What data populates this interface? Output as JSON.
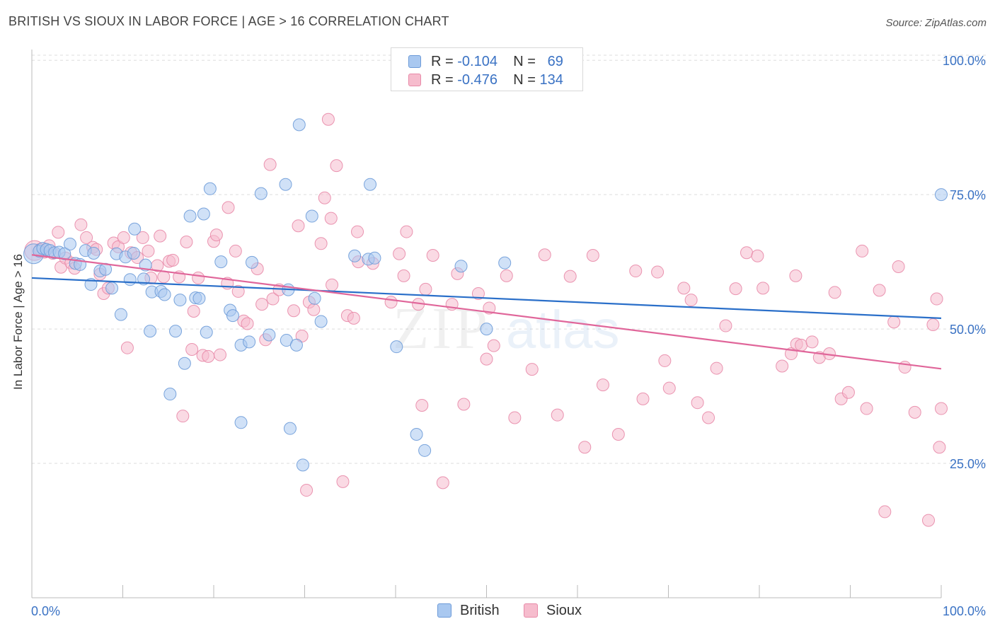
{
  "header": {
    "title": "BRITISH VS SIOUX IN LABOR FORCE | AGE > 16 CORRELATION CHART",
    "source": "Source: ZipAtlas.com"
  },
  "legend": {
    "british": {
      "r_label": "R = ",
      "r_value": "-0.104",
      "n_label": "N = ",
      "n_value": "69"
    },
    "sioux": {
      "r_label": "R = ",
      "r_value": "-0.476",
      "n_label": "N = ",
      "n_value": "134"
    }
  },
  "bottom_legend": {
    "british": "British",
    "sioux": "Sioux"
  },
  "watermark": {
    "zip": "ZIP",
    "atlas": "atlas"
  },
  "colors": {
    "british_fill": "#a9c8f0",
    "british_stroke": "#6d9bd8",
    "british_line": "#2a6fc9",
    "sioux_fill": "#f6bccd",
    "sioux_stroke": "#e88aa8",
    "sioux_line": "#e0669a",
    "tick_label": "#3a72c4",
    "grid": "#dddddd"
  },
  "chart_data": {
    "type": "scatter",
    "title": "BRITISH VS SIOUX IN LABOR FORCE | AGE > 16 CORRELATION CHART",
    "ylabel": "In Labor Force | Age > 16",
    "xlabel": "",
    "xlim": [
      0,
      100
    ],
    "ylim": [
      0,
      102
    ],
    "x_tick_labels": [
      "0.0%",
      "100.0%"
    ],
    "y_ticks": [
      25,
      50,
      75,
      100
    ],
    "y_tick_labels": [
      "25.0%",
      "50.0%",
      "75.0%",
      "100.0%"
    ],
    "grid": true,
    "legend_position": "top-center",
    "series": [
      {
        "name": "British",
        "color": "#6d9bd8",
        "r": -0.104,
        "n": 69,
        "trend": {
          "x": [
            0,
            100
          ],
          "y": [
            59.5,
            52.0
          ]
        },
        "points": [
          [
            0.2,
            64.0,
            3
          ],
          [
            0.8,
            64.5,
            1
          ],
          [
            1.2,
            65,
            1
          ],
          [
            1.6,
            64.8,
            1
          ],
          [
            2.0,
            64.6,
            1
          ],
          [
            2.5,
            64.2,
            1
          ],
          [
            3.0,
            64.3,
            1
          ],
          [
            3.6,
            64,
            1
          ],
          [
            4.2,
            65.8,
            1
          ],
          [
            4.8,
            62.2,
            1
          ],
          [
            5.3,
            62.0,
            1
          ],
          [
            5.9,
            64.6,
            1
          ],
          [
            6.5,
            58.3,
            1
          ],
          [
            6.8,
            64.1,
            1
          ],
          [
            7.5,
            60.8,
            1
          ],
          [
            8.1,
            61.1,
            1
          ],
          [
            8.8,
            57.6,
            1
          ],
          [
            9.3,
            64,
            1
          ],
          [
            9.8,
            52.7,
            1
          ],
          [
            10.3,
            63.4,
            1
          ],
          [
            10.8,
            59.2,
            1
          ],
          [
            11.2,
            64.1,
            1
          ],
          [
            11.3,
            68.6,
            1
          ],
          [
            12.3,
            59.3,
            1
          ],
          [
            12.5,
            61.9,
            1
          ],
          [
            13.0,
            49.6,
            1
          ],
          [
            13.2,
            56.9,
            1
          ],
          [
            14.2,
            57.0,
            1
          ],
          [
            14.6,
            56.4,
            1
          ],
          [
            15.2,
            37.9,
            1
          ],
          [
            15.8,
            49.6,
            1
          ],
          [
            16.3,
            55.4,
            1
          ],
          [
            16.8,
            43.6,
            1
          ],
          [
            17.4,
            71.0,
            1
          ],
          [
            18.0,
            55.8,
            1
          ],
          [
            18.4,
            55.7,
            1
          ],
          [
            18.9,
            71.4,
            1
          ],
          [
            19.2,
            49.4,
            1
          ],
          [
            19.6,
            76.1,
            1
          ],
          [
            20.8,
            62.5,
            1
          ],
          [
            21.8,
            53.5,
            1
          ],
          [
            22.1,
            52.5,
            1
          ],
          [
            23.0,
            47.0,
            1
          ],
          [
            23.0,
            32.6,
            1
          ],
          [
            23.9,
            47.6,
            1
          ],
          [
            24.2,
            62.4,
            1
          ],
          [
            25.2,
            75.2,
            1
          ],
          [
            26.1,
            48.9,
            1
          ],
          [
            28.2,
            57.3,
            1
          ],
          [
            28.0,
            47.9,
            1
          ],
          [
            27.9,
            76.9,
            1
          ],
          [
            28.4,
            31.5,
            1
          ],
          [
            29.1,
            47.0,
            1
          ],
          [
            29.4,
            88.0,
            1
          ],
          [
            29.8,
            24.7,
            1
          ],
          [
            30.8,
            71.0,
            1
          ],
          [
            31.1,
            55.7,
            1
          ],
          [
            31.8,
            51.4,
            1
          ],
          [
            35.5,
            63.6,
            1
          ],
          [
            37.0,
            63.0,
            1
          ],
          [
            37.2,
            76.9,
            1
          ],
          [
            37.7,
            63.2,
            1
          ],
          [
            40.1,
            46.7,
            1
          ],
          [
            42.3,
            30.4,
            1
          ],
          [
            43.2,
            27.4,
            1
          ],
          [
            47.2,
            61.7,
            1
          ],
          [
            50.0,
            50.0,
            1
          ],
          [
            52.0,
            62.3,
            1
          ],
          [
            100.0,
            75.0,
            1
          ]
        ]
      },
      {
        "name": "Sioux",
        "color": "#e88aa8",
        "r": -0.476,
        "n": 134,
        "trend": {
          "x": [
            0,
            100
          ],
          "y": [
            63.8,
            42.6
          ]
        },
        "points": [
          [
            0.3,
            64.6,
            3
          ],
          [
            0.9,
            64.8,
            1
          ],
          [
            1.4,
            64.3,
            1
          ],
          [
            1.9,
            65.5,
            1
          ],
          [
            2.3,
            64.1,
            1
          ],
          [
            2.9,
            68.0,
            1
          ],
          [
            3.2,
            61.5,
            1
          ],
          [
            3.7,
            63.2,
            1
          ],
          [
            4.3,
            62.3,
            1
          ],
          [
            4.7,
            61.3,
            1
          ],
          [
            5.4,
            69.4,
            1
          ],
          [
            6.0,
            67.0,
            1
          ],
          [
            6.7,
            65.2,
            1
          ],
          [
            7.1,
            64.8,
            1
          ],
          [
            7.5,
            60.2,
            1
          ],
          [
            7.9,
            56.6,
            1
          ],
          [
            8.4,
            57.6,
            1
          ],
          [
            9.0,
            66.0,
            1
          ],
          [
            9.5,
            65.3,
            1
          ],
          [
            10.1,
            67.0,
            1
          ],
          [
            10.5,
            46.5,
            1
          ],
          [
            10.9,
            64.2,
            1
          ],
          [
            11.6,
            63.3,
            1
          ],
          [
            12.2,
            67.0,
            1
          ],
          [
            12.8,
            64.5,
            1
          ],
          [
            13.1,
            59.5,
            1
          ],
          [
            13.8,
            61.8,
            1
          ],
          [
            14.1,
            67.3,
            1
          ],
          [
            14.5,
            59.7,
            1
          ],
          [
            15.1,
            62.6,
            1
          ],
          [
            15.5,
            62.8,
            1
          ],
          [
            16.2,
            59.7,
            1
          ],
          [
            16.6,
            33.8,
            1
          ],
          [
            17.0,
            66.2,
            1
          ],
          [
            17.6,
            46.2,
            1
          ],
          [
            17.8,
            53.3,
            1
          ],
          [
            18.3,
            59.5,
            1
          ],
          [
            18.8,
            45.1,
            1
          ],
          [
            19.4,
            44.9,
            1
          ],
          [
            20.0,
            66.3,
            1
          ],
          [
            20.3,
            67.5,
            1
          ],
          [
            20.7,
            45.2,
            1
          ],
          [
            21.5,
            58.5,
            1
          ],
          [
            21.6,
            72.6,
            1
          ],
          [
            22.4,
            64.5,
            1
          ],
          [
            22.7,
            57.0,
            1
          ],
          [
            23.3,
            51.5,
            1
          ],
          [
            23.7,
            51.0,
            1
          ],
          [
            24.8,
            61.2,
            1
          ],
          [
            25.3,
            54.6,
            1
          ],
          [
            25.7,
            48.0,
            1
          ],
          [
            26.2,
            80.6,
            1
          ],
          [
            26.5,
            55.6,
            1
          ],
          [
            27.2,
            57.3,
            1
          ],
          [
            28.8,
            53.4,
            1
          ],
          [
            29.3,
            69.2,
            1
          ],
          [
            29.7,
            48.7,
            1
          ],
          [
            30.2,
            20.0,
            1
          ],
          [
            30.5,
            55.0,
            1
          ],
          [
            31.0,
            53.6,
            1
          ],
          [
            31.8,
            65.9,
            1
          ],
          [
            32.2,
            74.4,
            1
          ],
          [
            32.6,
            89.0,
            1
          ],
          [
            32.9,
            70.6,
            1
          ],
          [
            33.0,
            58.2,
            1
          ],
          [
            33.5,
            80.4,
            1
          ],
          [
            34.2,
            21.6,
            1
          ],
          [
            34.7,
            52.5,
            1
          ],
          [
            35.4,
            52.0,
            1
          ],
          [
            35.8,
            68.1,
            1
          ],
          [
            35.9,
            62.5,
            1
          ],
          [
            37.5,
            62.2,
            1
          ],
          [
            39.5,
            55.0,
            1
          ],
          [
            40.4,
            64.0,
            1
          ],
          [
            40.9,
            59.9,
            1
          ],
          [
            41.2,
            68.1,
            1
          ],
          [
            42.5,
            54.6,
            1
          ],
          [
            42.9,
            35.8,
            1
          ],
          [
            43.3,
            57.4,
            1
          ],
          [
            44.1,
            63.7,
            1
          ],
          [
            45.2,
            21.4,
            1
          ],
          [
            46.2,
            54.6,
            1
          ],
          [
            46.8,
            60.3,
            1
          ],
          [
            47.5,
            36.0,
            1
          ],
          [
            49.1,
            56.6,
            1
          ],
          [
            50.0,
            44.4,
            1
          ],
          [
            50.3,
            53.9,
            1
          ],
          [
            50.8,
            46.9,
            1
          ],
          [
            52.2,
            59.9,
            1
          ],
          [
            53.1,
            33.5,
            1
          ],
          [
            55.0,
            42.5,
            1
          ],
          [
            56.4,
            63.8,
            1
          ],
          [
            57.8,
            34.0,
            1
          ],
          [
            59.2,
            59.8,
            1
          ],
          [
            60.8,
            28.0,
            1
          ],
          [
            61.7,
            63.7,
            1
          ],
          [
            62.8,
            39.6,
            1
          ],
          [
            64.5,
            30.4,
            1
          ],
          [
            66.4,
            60.8,
            1
          ],
          [
            67.2,
            37.0,
            1
          ],
          [
            68.8,
            60.6,
            1
          ],
          [
            69.6,
            44.1,
            1
          ],
          [
            70.1,
            39.0,
            1
          ],
          [
            71.7,
            57.6,
            1
          ],
          [
            72.5,
            55.4,
            1
          ],
          [
            73.2,
            36.3,
            1
          ],
          [
            74.4,
            33.5,
            1
          ],
          [
            75.3,
            42.7,
            1
          ],
          [
            76.3,
            50.6,
            1
          ],
          [
            77.4,
            57.5,
            1
          ],
          [
            78.6,
            64.2,
            1
          ],
          [
            79.8,
            63.6,
            1
          ],
          [
            80.4,
            57.6,
            1
          ],
          [
            82.5,
            43.1,
            1
          ],
          [
            83.5,
            45.4,
            1
          ],
          [
            84.0,
            59.9,
            1
          ],
          [
            84.1,
            47.2,
            1
          ],
          [
            84.6,
            47.0,
            1
          ],
          [
            85.8,
            47.6,
            1
          ],
          [
            86.6,
            44.7,
            1
          ],
          [
            87.7,
            45.4,
            1
          ],
          [
            88.3,
            56.8,
            1
          ],
          [
            89.0,
            37.0,
            1
          ],
          [
            89.8,
            38.2,
            1
          ],
          [
            91.3,
            64.5,
            1
          ],
          [
            91.8,
            35.2,
            1
          ],
          [
            93.2,
            57.2,
            1
          ],
          [
            93.8,
            16.0,
            1
          ],
          [
            94.8,
            51.3,
            1
          ],
          [
            95.3,
            61.6,
            1
          ],
          [
            96.0,
            42.9,
            1
          ],
          [
            97.1,
            34.5,
            1
          ],
          [
            99.5,
            55.6,
            1
          ],
          [
            99.8,
            28.0,
            1
          ],
          [
            100.0,
            35.2,
            1
          ],
          [
            98.6,
            14.4,
            1
          ],
          [
            99.1,
            50.8,
            1
          ]
        ]
      }
    ]
  }
}
